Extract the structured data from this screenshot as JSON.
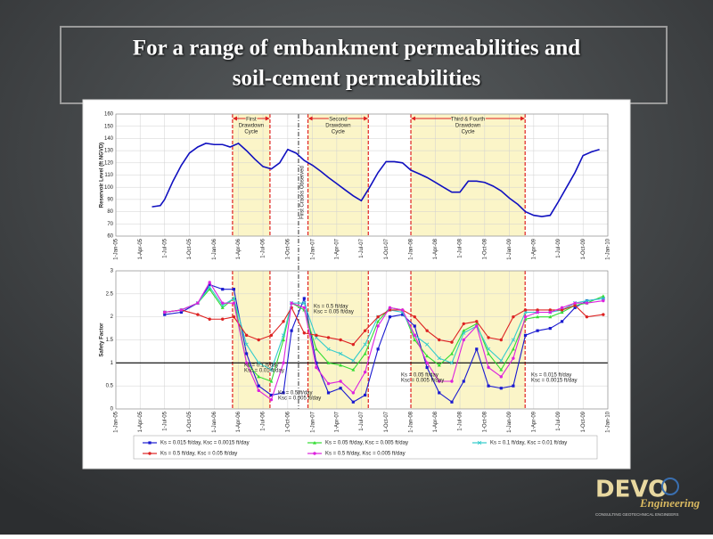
{
  "slide_title": [
    "For a range of embankment permeabilities and",
    "soil-cement permeabilities"
  ],
  "chart_data": [
    {
      "type": "line",
      "y_label": "Reservoir Level (ft NGVD)",
      "xlim": [
        "2005-01-01",
        "2010-01-01"
      ],
      "xticks": [
        {
          "value": "2005-01-01",
          "label": "1-Jan-05"
        },
        {
          "value": "2005-04-01",
          "label": "1-Apr-05"
        },
        {
          "value": "2005-07-01",
          "label": "1-Jul-05"
        },
        {
          "value": "2005-10-01",
          "label": "1-Oct-05"
        },
        {
          "value": "2006-01-01",
          "label": "1-Jan-06"
        },
        {
          "value": "2006-04-01",
          "label": "1-Apr-06"
        },
        {
          "value": "2006-07-01",
          "label": "1-Jul-06"
        },
        {
          "value": "2006-10-01",
          "label": "1-Oct-06"
        },
        {
          "value": "2007-01-01",
          "label": "1-Jan-07"
        },
        {
          "value": "2007-04-01",
          "label": "1-Apr-07"
        },
        {
          "value": "2007-07-01",
          "label": "1-Jul-07"
        },
        {
          "value": "2007-10-01",
          "label": "1-Oct-07"
        },
        {
          "value": "2008-01-01",
          "label": "1-Jan-08"
        },
        {
          "value": "2008-04-01",
          "label": "1-Apr-08"
        },
        {
          "value": "2008-07-01",
          "label": "1-Jul-08"
        },
        {
          "value": "2008-10-01",
          "label": "1-Oct-08"
        },
        {
          "value": "2009-01-01",
          "label": "1-Jan-09"
        },
        {
          "value": "2009-04-01",
          "label": "1-Apr-09"
        },
        {
          "value": "2009-07-01",
          "label": "1-Jul-09"
        },
        {
          "value": "2009-10-01",
          "label": "1-Oct-09"
        },
        {
          "value": "2010-01-01",
          "label": "1-Jan-10"
        }
      ],
      "ylim": [
        60,
        160
      ],
      "yticks": [
        60,
        70,
        80,
        90,
        100,
        110,
        120,
        130,
        140,
        150,
        160
      ],
      "grid": true,
      "shaded_periods": [
        {
          "start": "2006-03-10",
          "end": "2006-07-27",
          "label": [
            "First",
            "Drawdown",
            "Cycle"
          ]
        },
        {
          "start": "2006-12-15",
          "end": "2007-07-27",
          "label": [
            "Second",
            "Drawdown",
            "Cycle"
          ]
        },
        {
          "start": "2008-01-01",
          "end": "2009-02-28",
          "label": [
            "Third & Fourth",
            "Drawdown",
            "Cycle"
          ]
        }
      ],
      "cracks": {
        "date": "2006-11-10",
        "label": "First Cracks Observed"
      },
      "x": [
        "2005-05-15",
        "2005-06-15",
        "2005-07-01",
        "2005-08-01",
        "2005-09-01",
        "2005-10-01",
        "2005-11-01",
        "2005-12-01",
        "2006-01-01",
        "2006-02-01",
        "2006-03-01",
        "2006-04-01",
        "2006-05-01",
        "2006-06-01",
        "2006-07-01",
        "2006-08-01",
        "2006-09-01",
        "2006-10-01",
        "2006-11-01",
        "2006-12-01",
        "2007-01-01",
        "2007-02-01",
        "2007-03-01",
        "2007-04-01",
        "2007-05-01",
        "2007-06-01",
        "2007-07-01",
        "2007-08-01",
        "2007-09-01",
        "2007-10-01",
        "2007-11-01",
        "2007-12-01",
        "2008-01-01",
        "2008-02-01",
        "2008-03-01",
        "2008-04-01",
        "2008-05-01",
        "2008-06-01",
        "2008-07-01",
        "2008-08-01",
        "2008-09-01",
        "2008-10-01",
        "2008-11-01",
        "2008-12-01",
        "2009-01-01",
        "2009-02-01",
        "2009-03-01",
        "2009-04-01",
        "2009-05-01",
        "2009-06-01",
        "2009-07-01",
        "2009-08-01",
        "2009-09-01",
        "2009-10-01",
        "2009-11-01",
        "2009-12-01"
      ],
      "series": [
        {
          "color": "#1010c0",
          "values": [
            84,
            85,
            90,
            105,
            118,
            128,
            133,
            136,
            135,
            135,
            133,
            136,
            130,
            123,
            117,
            115,
            120,
            131,
            128,
            122,
            118,
            113,
            108,
            103,
            98,
            93,
            89,
            100,
            112,
            121,
            121,
            120,
            114,
            111,
            108,
            104,
            100,
            96,
            96,
            105,
            105,
            104,
            101,
            97,
            91,
            86,
            80,
            77,
            76,
            77,
            88,
            100,
            112,
            126,
            129,
            131
          ]
        }
      ]
    },
    {
      "type": "line",
      "y_label": "Safety Factor",
      "xlim": [
        "2005-01-01",
        "2010-01-01"
      ],
      "xticks": [
        {
          "value": "2005-01-01",
          "label": "1-Jan-05"
        },
        {
          "value": "2005-04-01",
          "label": "1-Apr-05"
        },
        {
          "value": "2005-07-01",
          "label": "1-Jul-05"
        },
        {
          "value": "2005-10-01",
          "label": "1-Oct-05"
        },
        {
          "value": "2006-01-01",
          "label": "1-Jan-06"
        },
        {
          "value": "2006-04-01",
          "label": "1-Apr-06"
        },
        {
          "value": "2006-07-01",
          "label": "1-Jul-06"
        },
        {
          "value": "2006-10-01",
          "label": "1-Oct-06"
        },
        {
          "value": "2007-01-01",
          "label": "1-Jan-07"
        },
        {
          "value": "2007-04-01",
          "label": "1-Apr-07"
        },
        {
          "value": "2007-07-01",
          "label": "1-Jul-07"
        },
        {
          "value": "2007-10-01",
          "label": "1-Oct-07"
        },
        {
          "value": "2008-01-01",
          "label": "1-Jan-08"
        },
        {
          "value": "2008-04-01",
          "label": "1-Apr-08"
        },
        {
          "value": "2008-07-01",
          "label": "1-Jul-08"
        },
        {
          "value": "2008-10-01",
          "label": "1-Oct-08"
        },
        {
          "value": "2009-01-01",
          "label": "1-Jan-09"
        },
        {
          "value": "2009-04-01",
          "label": "1-Apr-09"
        },
        {
          "value": "2009-07-01",
          "label": "1-Jul-09"
        },
        {
          "value": "2009-10-01",
          "label": "1-Oct-09"
        },
        {
          "value": "2010-01-01",
          "label": "1-Jan-10"
        }
      ],
      "ylim": [
        0,
        3
      ],
      "yticks": [
        0,
        0.5,
        1,
        1.5,
        2,
        2.5,
        3
      ],
      "grid": true,
      "reference_line": 1,
      "shaded_periods": [
        {
          "start": "2006-03-10",
          "end": "2006-07-27"
        },
        {
          "start": "2006-12-15",
          "end": "2007-07-27"
        },
        {
          "start": "2008-01-01",
          "end": "2009-02-28"
        }
      ],
      "x": [
        "2005-07-01",
        "2005-09-01",
        "2005-11-01",
        "2005-12-15",
        "2006-02-01",
        "2006-03-15",
        "2006-05-01",
        "2006-06-15",
        "2006-08-01",
        "2006-09-15",
        "2006-10-15",
        "2006-12-01",
        "2007-01-15",
        "2007-03-01",
        "2007-04-15",
        "2007-06-01",
        "2007-07-15",
        "2007-09-01",
        "2007-10-15",
        "2007-12-01",
        "2008-01-15",
        "2008-03-01",
        "2008-04-15",
        "2008-06-01",
        "2008-07-15",
        "2008-09-01",
        "2008-10-15",
        "2008-12-01",
        "2009-01-15",
        "2009-03-01",
        "2009-04-15",
        "2009-06-01",
        "2009-07-15",
        "2009-09-01",
        "2009-10-15",
        "2009-12-15"
      ],
      "series": [
        {
          "name": "Ks = 0.015 ft/day, Ksc = 0.0015 ft/day",
          "color": "#1a1ad0",
          "marker": "square",
          "values": [
            2.05,
            2.1,
            2.3,
            2.7,
            2.6,
            2.6,
            1.2,
            0.5,
            0.3,
            0.35,
            1.7,
            2.4,
            1.0,
            0.35,
            0.45,
            0.15,
            0.3,
            1.3,
            2.0,
            2.05,
            1.8,
            0.9,
            0.35,
            0.15,
            0.6,
            1.3,
            0.5,
            0.45,
            0.5,
            1.6,
            1.7,
            1.75,
            1.9,
            2.2,
            2.35,
            2.4
          ]
        },
        {
          "name": "Ks = 0.05 ft/day, Ksc = 0.005 ft/day",
          "color": "#33dd33",
          "marker": "triangle",
          "values": [
            2.1,
            2.15,
            2.3,
            2.6,
            2.2,
            2.4,
            1.0,
            0.7,
            0.6,
            1.5,
            2.3,
            2.15,
            1.3,
            1.0,
            0.95,
            0.85,
            1.2,
            1.9,
            2.2,
            2.15,
            1.5,
            1.15,
            0.95,
            1.2,
            1.7,
            1.85,
            1.2,
            0.85,
            1.3,
            1.95,
            2.0,
            2.0,
            2.1,
            2.25,
            2.3,
            2.45
          ]
        },
        {
          "name": "Ks = 0.1 ft/day, Ksc = 0.01 ft/day",
          "color": "#33cccc",
          "marker": "cross",
          "values": [
            2.1,
            2.15,
            2.3,
            2.65,
            2.25,
            2.4,
            1.4,
            1.0,
            0.85,
            1.6,
            2.3,
            2.3,
            1.55,
            1.3,
            1.2,
            1.05,
            1.4,
            2.0,
            2.15,
            2.1,
            1.6,
            1.4,
            1.1,
            1.0,
            1.65,
            1.8,
            1.3,
            1.05,
            1.5,
            2.1,
            2.1,
            2.1,
            2.15,
            2.3,
            2.35,
            2.4
          ]
        },
        {
          "name": "Ks = 0.5 ft/day, Ksc = 0.05 ft/day",
          "color": "#dd2222",
          "marker": "circle",
          "values": [
            2.1,
            2.15,
            2.05,
            1.95,
            1.95,
            2.0,
            1.6,
            1.5,
            1.6,
            1.9,
            2.2,
            1.65,
            1.6,
            1.55,
            1.5,
            1.4,
            1.7,
            2.0,
            2.15,
            2.15,
            2.0,
            1.7,
            1.5,
            1.45,
            1.85,
            1.9,
            1.55,
            1.5,
            2.0,
            2.15,
            2.15,
            2.15,
            2.15,
            2.25,
            2.0,
            2.05
          ]
        },
        {
          "name": "Ks = 0.5 ft/day, Ksc = 0.005 ft/day",
          "color": "#dd22dd",
          "marker": "circle",
          "values": [
            2.1,
            2.15,
            2.3,
            2.75,
            2.3,
            2.3,
            1.0,
            0.4,
            0.2,
            1.0,
            2.3,
            2.2,
            0.9,
            0.55,
            0.6,
            0.35,
            0.8,
            1.8,
            2.2,
            2.15,
            1.6,
            1.0,
            0.6,
            0.6,
            1.5,
            1.8,
            0.9,
            0.7,
            1.1,
            2.0,
            2.1,
            2.1,
            2.2,
            2.3,
            2.3,
            2.35
          ]
        }
      ],
      "annotations": [
        {
          "lines": [
            "Ks = 0.5 ft/day",
            "Ksc = 0.05 ft/day"
          ]
        },
        {
          "lines": [
            "Ks = 0.1 ft/day",
            "Ksc = 0.01 ft/day"
          ]
        },
        {
          "lines": [
            "Ks = 0.5 ft/day",
            "Ksc = 0.005 ft/day"
          ]
        },
        {
          "lines": [
            "Ks = 0.05 ft/day",
            "Ksc = 0.005 ft/day"
          ]
        },
        {
          "lines": [
            "Ks = 0.015 ft/day",
            "Ksc = 0.0015 ft/day"
          ]
        }
      ]
    }
  ],
  "logo": {
    "name": "DEVO",
    "script": "Engineering",
    "tagline": "CONSULTING GEOTECHNICAL ENGINEERS"
  }
}
